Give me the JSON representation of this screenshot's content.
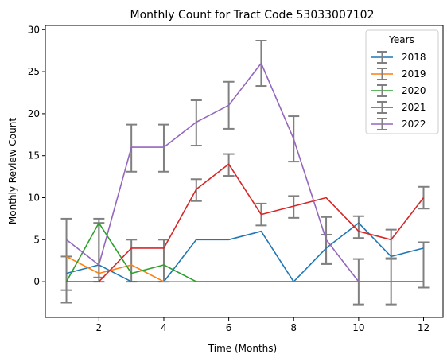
{
  "chart_data": {
    "type": "line",
    "title": "Monthly Count for Tract Code 53033007102",
    "xlabel": "Time (Months)",
    "ylabel": "Monthly Review Count",
    "xlim": [
      0.35,
      12.6
    ],
    "ylim": [
      -4.25,
      30.5
    ],
    "xticks": [
      2,
      4,
      6,
      8,
      10,
      12
    ],
    "yticks": [
      0,
      5,
      10,
      15,
      20,
      25,
      30
    ],
    "grid": false,
    "legend": {
      "title": "Years",
      "placement": "top-right"
    },
    "x": [
      1,
      2,
      3,
      4,
      5,
      6,
      7,
      8,
      9,
      10,
      11,
      12
    ],
    "series": [
      {
        "name": "2018",
        "color": "#1f77b4",
        "values": [
          1,
          2,
          0,
          0,
          5,
          5,
          6,
          0,
          4,
          7,
          3,
          4
        ]
      },
      {
        "name": "2019",
        "color": "#ff7f0e",
        "values": [
          3,
          1,
          2,
          0,
          0,
          0,
          0,
          0,
          0,
          0,
          0,
          0
        ]
      },
      {
        "name": "2020",
        "color": "#2ca02c",
        "values": [
          0,
          7,
          1,
          2,
          0,
          0,
          0,
          0,
          0,
          0,
          0,
          0
        ]
      },
      {
        "name": "2021",
        "color": "#d62728",
        "values": [
          0,
          0,
          4,
          4,
          11,
          14,
          8,
          9,
          10,
          6,
          5,
          10
        ]
      },
      {
        "name": "2022",
        "color": "#9467bd",
        "values": [
          5,
          2,
          16,
          16,
          19,
          21,
          26,
          17,
          5,
          0,
          0,
          0
        ]
      }
    ],
    "error_bars": {
      "color": "#808080",
      "x": [
        1,
        1,
        2,
        2,
        3,
        3,
        4,
        4,
        5,
        5,
        6,
        6,
        7,
        7,
        8,
        8,
        9,
        9,
        10,
        10,
        11,
        11,
        12,
        12
      ],
      "center": [
        2.5,
        1.0,
        3.5,
        4.0,
        15.9,
        2.5,
        15.9,
        2.5,
        18.9,
        10.9,
        21.0,
        13.9,
        26.0,
        8.0,
        17.0,
        8.9,
        4.9,
        3.9,
        6.5,
        0.0,
        4.5,
        0.0,
        10.0,
        2.0
      ],
      "error": [
        5.0,
        2.0,
        3.5,
        3.5,
        2.8,
        2.5,
        2.8,
        2.5,
        2.7,
        1.3,
        2.8,
        1.3,
        2.7,
        1.3,
        2.7,
        1.3,
        2.8,
        1.7,
        1.3,
        2.7,
        1.7,
        2.7,
        1.3,
        2.7
      ]
    }
  }
}
